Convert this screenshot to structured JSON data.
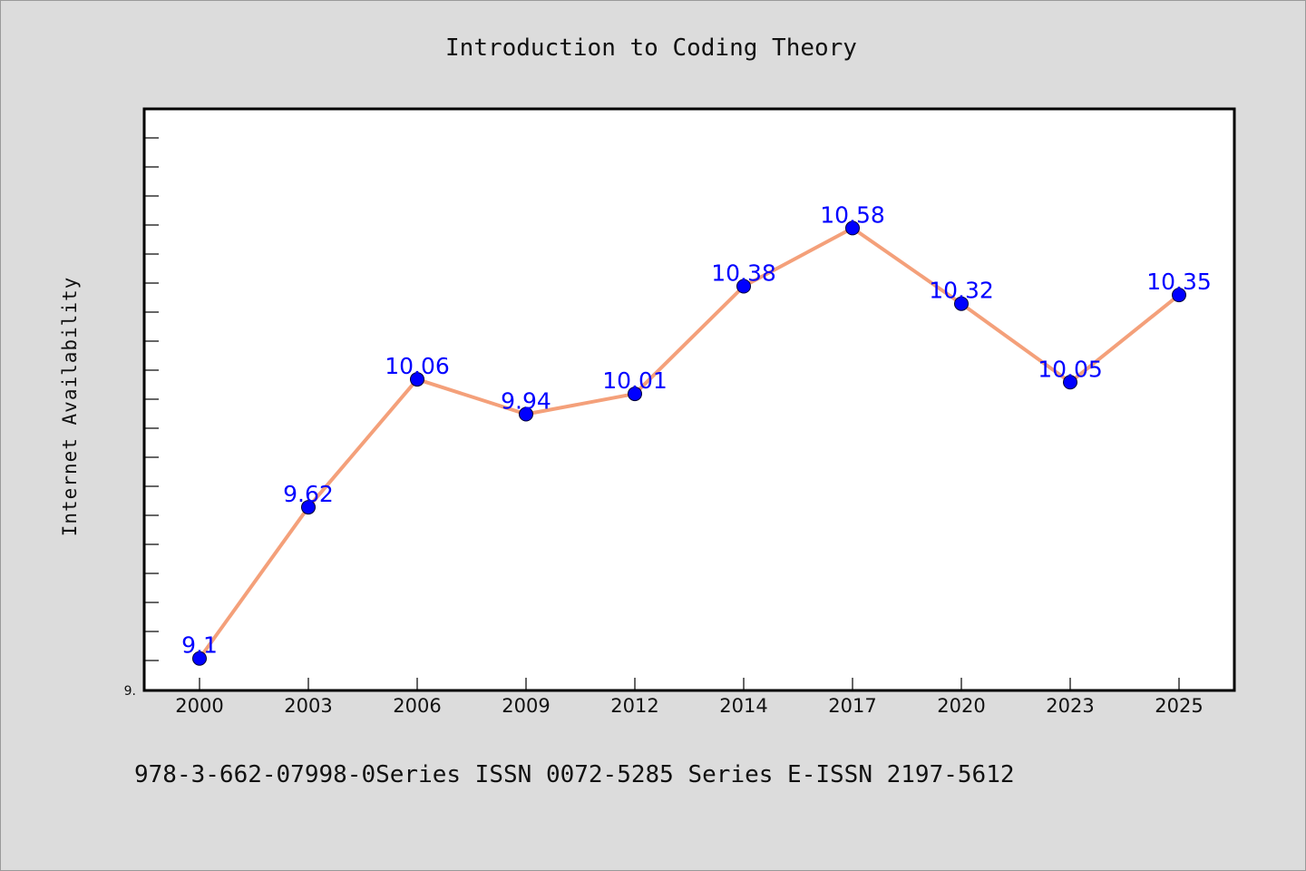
{
  "chart_data": {
    "type": "line",
    "title": "Introduction to Coding Theory",
    "ylabel": "Internet Availability",
    "xlabel": "",
    "categories": [
      "2000",
      "2003",
      "2006",
      "2009",
      "2012",
      "2014",
      "2017",
      "2020",
      "2023",
      "2025"
    ],
    "series": [
      {
        "values": [
          9.1,
          9.62,
          10.06,
          9.94,
          10.01,
          10.38,
          10.58,
          10.32,
          10.05,
          10.35
        ],
        "labels": [
          "9.1",
          "9.62",
          "10.06",
          "9.94",
          "10.01",
          "10.38",
          "10.58",
          "10.32",
          "10.05",
          "10.35"
        ],
        "line_color": "#f4a07a",
        "marker_color": "#0000ff"
      }
    ],
    "ylim": [
      8.99,
      10.99
    ],
    "y_tick_labels": [
      "9."
    ],
    "grid": false,
    "legend": false
  },
  "footer": {
    "text": "978-3-662-07998-0Series ISSN 0072-5285 Series E-ISSN 2197-5612"
  },
  "colors": {
    "background": "#dcdcdc",
    "plot_background": "#ffffff",
    "line": "#f4a07a",
    "marker": "#0000ff",
    "data_label": "#0000ff"
  }
}
